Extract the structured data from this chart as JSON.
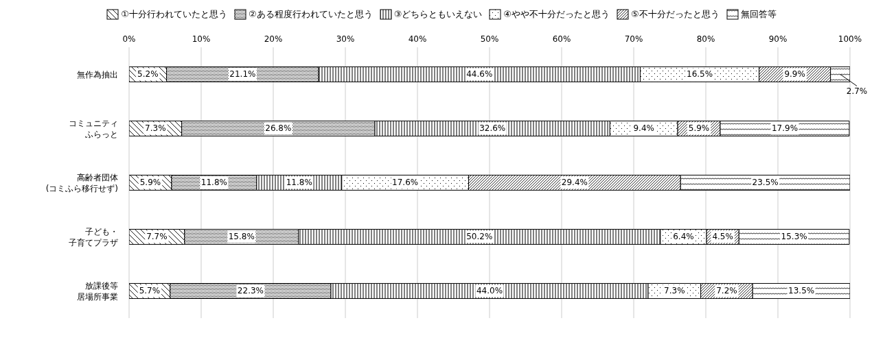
{
  "chart_data": {
    "type": "bar",
    "orientation": "horizontal",
    "stacked": true,
    "legend": "top",
    "grid": "x",
    "categories": [
      "無作為抽出",
      "コミュニティふらっと",
      "高齢者団体(コミふら移行せず)",
      "子ども・子育てプラザ",
      "放課後等居場所事業"
    ],
    "xlim": [
      0,
      100
    ],
    "xticks": [
      {
        "value": 0,
        "label": "0%"
      },
      {
        "value": 10,
        "label": "10%"
      },
      {
        "value": 20,
        "label": "20%"
      },
      {
        "value": 30,
        "label": "30%"
      },
      {
        "value": 40,
        "label": "40%"
      },
      {
        "value": 50,
        "label": "50%"
      },
      {
        "value": 60,
        "label": "60%"
      },
      {
        "value": 70,
        "label": "70%"
      },
      {
        "value": 80,
        "label": "80%"
      },
      {
        "value": 90,
        "label": "90%"
      },
      {
        "value": 100,
        "label": "100%"
      }
    ],
    "series": [
      {
        "name": "①十分行われていたと思う",
        "color": "#000000",
        "values": [
          5.2,
          7.3,
          5.9,
          7.7,
          5.7
        ],
        "value_labels": [
          "5.2%",
          "7.3%",
          "5.9%",
          "7.7%",
          "5.7%"
        ]
      },
      {
        "name": "②ある程度行われていたと思う",
        "color": "#000000",
        "values": [
          21.1,
          26.8,
          11.8,
          15.8,
          22.3
        ],
        "value_labels": [
          "21.1%",
          "26.8%",
          "11.8%",
          "15.8%",
          "22.3%"
        ]
      },
      {
        "name": "③どちらともいえない",
        "color": "#000000",
        "values": [
          44.6,
          32.6,
          11.8,
          50.2,
          44.0
        ],
        "value_labels": [
          "44.6%",
          "32.6%",
          "11.8%",
          "50.2%",
          "44.0%"
        ]
      },
      {
        "name": "④やや不十分だったと思う",
        "color": "#000000",
        "values": [
          16.5,
          9.4,
          17.6,
          6.4,
          7.3
        ],
        "value_labels": [
          "16.5%",
          "9.4%",
          "17.6%",
          "6.4%",
          "7.3%"
        ]
      },
      {
        "name": "⑤不十分だったと思う",
        "color": "#000000",
        "values": [
          9.9,
          5.9,
          29.4,
          4.5,
          7.2
        ],
        "value_labels": [
          "9.9%",
          "5.9%",
          "29.4%",
          "4.5%",
          "7.2%"
        ]
      },
      {
        "name": "無回答等",
        "color": "#000000",
        "values": [
          2.7,
          17.9,
          23.5,
          15.3,
          13.5
        ],
        "value_labels": [
          "2.7%",
          "17.9%",
          "23.5%",
          "15.3%",
          "13.5%"
        ]
      }
    ]
  }
}
